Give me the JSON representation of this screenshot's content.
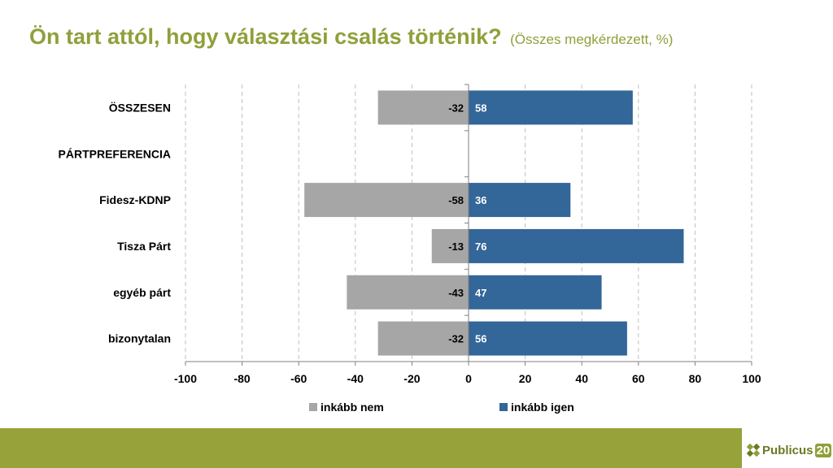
{
  "title": "Ön tart attól, hogy választási csalás történik?",
  "subtitle": "(Összes megkérdezett, %)",
  "logo": {
    "brand": "Publicus",
    "number": "20"
  },
  "chart_data": {
    "type": "bar",
    "orientation": "horizontal",
    "stacked": "diverging",
    "categories": [
      "ÖSSZESEN",
      "PÁRTPREFERENCIA",
      "Fidesz-KDNP",
      "Tisza Párt",
      "egyéb párt",
      "bizonytalan"
    ],
    "series": [
      {
        "name": "inkább nem",
        "color": "#a6a6a6",
        "values": [
          -32,
          null,
          -58,
          -13,
          -43,
          -32
        ],
        "labels": [
          "-32",
          "",
          "-58",
          "-13",
          "-43",
          "-32"
        ]
      },
      {
        "name": "inkább igen",
        "color": "#336699",
        "values": [
          58,
          null,
          36,
          76,
          47,
          56
        ],
        "labels": [
          "58",
          "",
          "36",
          "76",
          "47",
          "56"
        ]
      }
    ],
    "xlim": [
      -100,
      100
    ],
    "xticks": [
      -100,
      -80,
      -60,
      -40,
      -20,
      0,
      20,
      40,
      60,
      80,
      100
    ],
    "xtick_labels": [
      "-100",
      "-80",
      "-60",
      "-40",
      "-20",
      "0",
      "20",
      "40",
      "60",
      "80",
      "100"
    ],
    "grid": "vertical dashed",
    "legend": "bottom-center"
  }
}
